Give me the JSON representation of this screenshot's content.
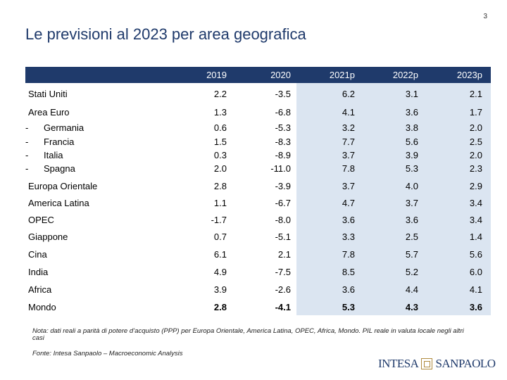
{
  "page_number": "3",
  "title": "Le previsioni al 2023 per area geografica",
  "columns": [
    "2019",
    "2020",
    "2021p",
    "2022p",
    "2023p"
  ],
  "rows": [
    {
      "label": "Stati Uniti",
      "values": [
        "2.2",
        "-3.5",
        "6.2",
        "3.1",
        "2.1"
      ]
    },
    {
      "label": "Area Euro",
      "values": [
        "1.3",
        "-6.8",
        "4.1",
        "3.6",
        "1.7"
      ]
    },
    {
      "label": "Germania",
      "values": [
        "0.6",
        "-5.3",
        "3.2",
        "3.8",
        "2.0"
      ]
    },
    {
      "label": "Francia",
      "values": [
        "1.5",
        "-8.3",
        "7.7",
        "5.6",
        "2.5"
      ]
    },
    {
      "label": "Italia",
      "values": [
        "0.3",
        "-8.9",
        "3.7",
        "3.9",
        "2.0"
      ]
    },
    {
      "label": "Spagna",
      "values": [
        "2.0",
        "-11.0",
        "7.8",
        "5.3",
        "2.3"
      ]
    },
    {
      "label": "Europa Orientale",
      "values": [
        "2.8",
        "-3.9",
        "3.7",
        "4.0",
        "2.9"
      ]
    },
    {
      "label": "America Latina",
      "values": [
        "1.1",
        "-6.7",
        "4.7",
        "3.7",
        "3.4"
      ]
    },
    {
      "label": "OPEC",
      "values": [
        "-1.7",
        "-8.0",
        "3.6",
        "3.6",
        "3.4"
      ]
    },
    {
      "label": "Giappone",
      "values": [
        "0.7",
        "-5.1",
        "3.3",
        "2.5",
        "1.4"
      ]
    },
    {
      "label": "Cina",
      "values": [
        "6.1",
        "2.1",
        "7.8",
        "5.7",
        "5.6"
      ]
    },
    {
      "label": "India",
      "values": [
        "4.9",
        "-7.5",
        "8.5",
        "5.2",
        "6.0"
      ]
    },
    {
      "label": "Africa",
      "values": [
        "3.9",
        "-2.6",
        "3.6",
        "4.4",
        "4.1"
      ]
    },
    {
      "label": "Mondo",
      "values": [
        "2.8",
        "-4.1",
        "5.3",
        "4.3",
        "3.6"
      ]
    }
  ],
  "sub_dash": "-",
  "note": "Nota: dati reali a parità di potere d’acquisto (PPP) per Europa Orientale, America Latina, OPEC, Africa, Mondo. PIL reale in valuta locale negli altri casi",
  "source": "Fonte: Intesa Sanpaolo – Macroeconomic Analysis",
  "logo": {
    "left": "INTESA",
    "right": "SANPAOLO"
  }
}
